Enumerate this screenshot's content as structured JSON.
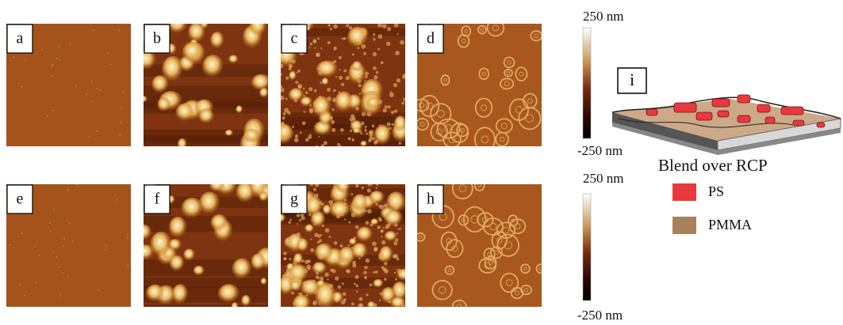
{
  "panels": [
    {
      "label": "a"
    },
    {
      "label": "b"
    },
    {
      "label": "c"
    },
    {
      "label": "d"
    },
    {
      "label": "e"
    },
    {
      "label": "f"
    },
    {
      "label": "g"
    },
    {
      "label": "h"
    }
  ],
  "colorbars": [
    {
      "max": "250 nm",
      "min": "-250 nm"
    },
    {
      "max": "250 nm",
      "min": "-250 nm"
    }
  ],
  "schematic": {
    "label": "i",
    "caption": "Blend over RCP",
    "legend": [
      {
        "name": "PS",
        "color": "#e8393f"
      },
      {
        "name": "PMMA",
        "color": "#a8805a"
      }
    ]
  }
}
